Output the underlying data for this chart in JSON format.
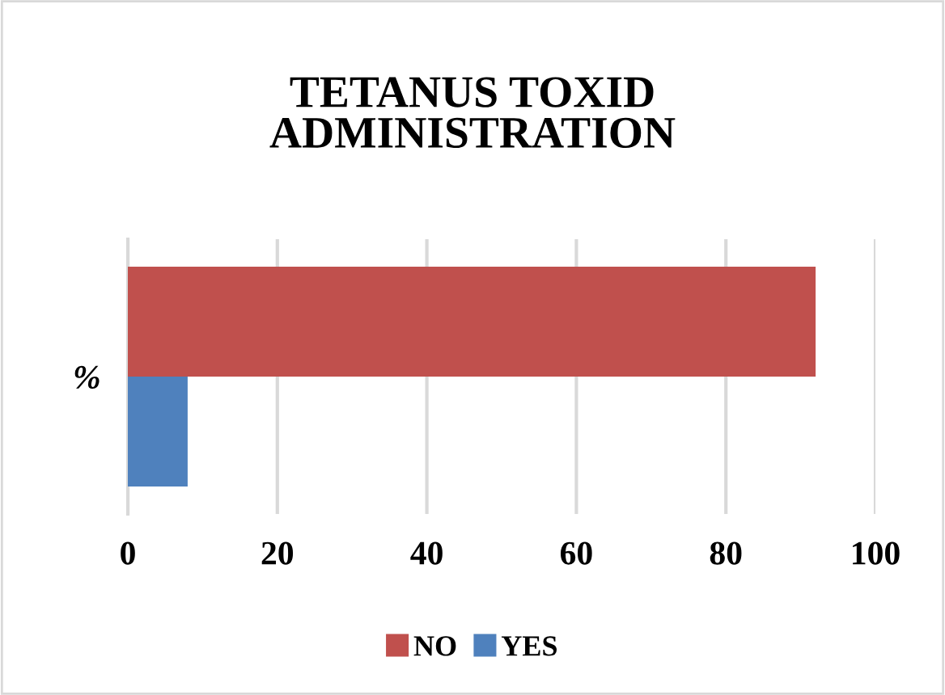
{
  "chart_data": {
    "type": "bar",
    "orientation": "horizontal",
    "title": "TETANUS TOXID\nADMINISTRATION",
    "categories": [
      "%"
    ],
    "series": [
      {
        "name": "NO",
        "color": "#c0504d",
        "values": [
          92
        ]
      },
      {
        "name": "YES",
        "color": "#4f81bd",
        "values": [
          8
        ]
      }
    ],
    "xlim": [
      0,
      100
    ],
    "xticks": [
      0,
      20,
      40,
      60,
      80,
      100
    ],
    "grid": "x",
    "legend": "bottom"
  }
}
